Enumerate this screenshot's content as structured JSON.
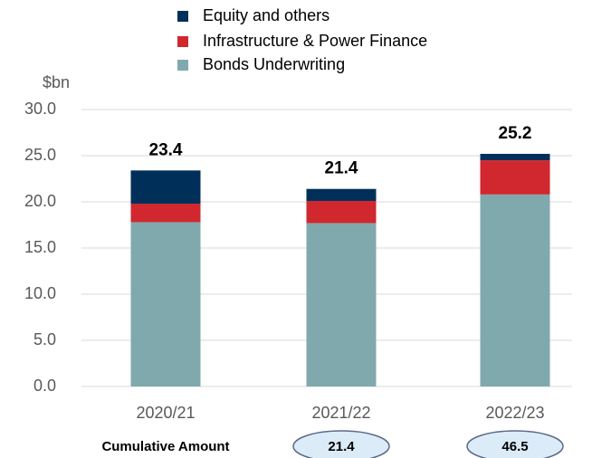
{
  "chart_data": {
    "type": "stacked_bar",
    "y_label": "$bn",
    "categories": [
      "2020/21",
      "2021/22",
      "2022/23"
    ],
    "series": [
      {
        "name": "Bonds Underwriting",
        "color": "#80a9ad",
        "values": [
          17.8,
          17.7,
          20.8
        ]
      },
      {
        "name": "Infrastructure & Power Finance",
        "color": "#d0282e",
        "values": [
          2.0,
          2.4,
          3.7
        ]
      },
      {
        "name": "Equity and others",
        "color": "#00305a",
        "values": [
          3.6,
          1.3,
          0.7
        ]
      }
    ],
    "totals": [
      23.4,
      21.4,
      25.2
    ],
    "cumulative": {
      "label": "Cumulative Amount",
      "values": [
        null,
        21.4,
        46.5
      ]
    },
    "ylim": [
      0,
      30
    ],
    "yticks": [
      {
        "value": 0,
        "label": "0.0"
      },
      {
        "value": 5,
        "label": "5.0"
      },
      {
        "value": 10,
        "label": "10.0"
      },
      {
        "value": 15,
        "label": "15.0"
      },
      {
        "value": 20,
        "label": "20.0"
      },
      {
        "value": 25,
        "label": "25.0"
      },
      {
        "value": 30,
        "label": "30.0"
      }
    ],
    "grid": true
  }
}
